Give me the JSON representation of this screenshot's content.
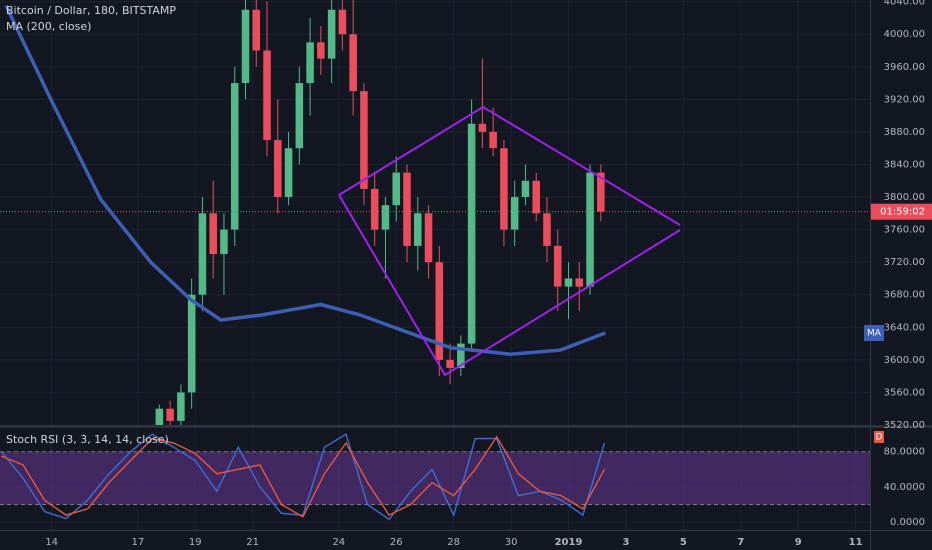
{
  "chart_data": [
    {
      "type": "candlestick",
      "title": "Bitcoin / Dollar, 180, BITSTAMP",
      "x": [
        17.75,
        18.125,
        18.5,
        18.875,
        19.25,
        19.625,
        20,
        20.375,
        20.75,
        21.125,
        21.5,
        21.875,
        22.25,
        22.625,
        23,
        23.375,
        23.75,
        24.125,
        24.5,
        24.875,
        25.25,
        25.625,
        26,
        26.375,
        26.75,
        27.125,
        27.5,
        27.875,
        28.25,
        28.625,
        29,
        29.375,
        29.75,
        30.125,
        30.5,
        30.875,
        31.25,
        31.625,
        32,
        32.375,
        32.75,
        33.125
      ],
      "open": [
        3520,
        3540,
        3525,
        3560,
        3680,
        3780,
        3730,
        3760,
        3940,
        4030,
        3980,
        3870,
        3800,
        3860,
        3940,
        3990,
        3970,
        4030,
        4000,
        3930,
        3810,
        3760,
        3790,
        3830,
        3740,
        3780,
        3720,
        3600,
        3590,
        3620,
        3890,
        3880,
        3860,
        3760,
        3800,
        3820,
        3780,
        3740,
        3690,
        3700,
        3690,
        3830
      ],
      "high": [
        3545,
        3550,
        3570,
        3700,
        3800,
        3820,
        3780,
        3960,
        4060,
        4060,
        4040,
        3920,
        3880,
        3960,
        4020,
        4010,
        4050,
        4060,
        4050,
        3940,
        3830,
        3800,
        3850,
        3840,
        3800,
        3790,
        3740,
        3620,
        3630,
        3920,
        3970,
        3910,
        3870,
        3820,
        3840,
        3830,
        3800,
        3760,
        3720,
        3720,
        3840,
        3840
      ],
      "low": [
        3505,
        3510,
        3515,
        3540,
        3660,
        3700,
        3680,
        3740,
        3920,
        3960,
        3850,
        3780,
        3790,
        3840,
        3900,
        3950,
        3940,
        3980,
        3900,
        3790,
        3740,
        3700,
        3770,
        3720,
        3710,
        3700,
        3580,
        3570,
        3580,
        3610,
        3860,
        3850,
        3740,
        3740,
        3790,
        3770,
        3720,
        3660,
        3650,
        3660,
        3680,
        3770
      ],
      "close": [
        3540,
        3525,
        3560,
        3680,
        3780,
        3730,
        3760,
        3940,
        4030,
        3980,
        3870,
        3800,
        3860,
        3940,
        3990,
        3970,
        4030,
        4000,
        3930,
        3810,
        3760,
        3790,
        3830,
        3740,
        3780,
        3720,
        3600,
        3590,
        3620,
        3890,
        3880,
        3860,
        3760,
        3800,
        3820,
        3780,
        3740,
        3690,
        3700,
        3690,
        3830,
        3782
      ],
      "up_color": "#53b987",
      "down_color": "#eb4d5c",
      "overlays": [
        {
          "name": "MA (200, close)",
          "badge": "MA",
          "color": "#3f5fb6",
          "x": [
            12.41,
            13.97,
            15.71,
            17.45,
            18.84,
            19.89,
            21.28,
            23.37,
            24.76,
            26.15,
            27.89,
            29.97,
            31.71,
            33.28
          ],
          "values": [
            4035,
            3920,
            3797,
            3720,
            3674,
            3649,
            3655,
            3668,
            3655,
            3637,
            3615,
            3607,
            3612,
            3633
          ]
        }
      ],
      "countdown": "01:59:02",
      "xlim": [
        12.2,
        42.5
      ],
      "ylim": [
        3520,
        4042
      ],
      "xticks": [
        14,
        17,
        19,
        21,
        24,
        26,
        28,
        30,
        {
          "value": 32,
          "label": "2019"
        },
        {
          "value": 34,
          "label": "3"
        },
        {
          "value": 36,
          "label": "5"
        },
        {
          "value": 38,
          "label": "7"
        },
        {
          "value": 40,
          "label": "9"
        },
        {
          "value": 42,
          "label": "11"
        }
      ],
      "yticks": [
        {
          "value": 3520,
          "label": "3520.00"
        },
        {
          "value": 3560,
          "label": "3560.00"
        },
        {
          "value": 3600,
          "label": "3600.00"
        },
        {
          "value": 3640,
          "label": "3640.00"
        },
        {
          "value": 3680,
          "label": "3680.00"
        },
        {
          "value": 3720,
          "label": "3720.00"
        },
        {
          "value": 3760,
          "label": "3760.00"
        },
        {
          "value": 3800,
          "label": "3800.00"
        },
        {
          "value": 3840,
          "label": "3840.00"
        },
        {
          "value": 3880,
          "label": "3880.00"
        },
        {
          "value": 3920,
          "label": "3920.00"
        },
        {
          "value": 3960,
          "label": "3960.00"
        },
        {
          "value": 4000,
          "label": "4000.00"
        },
        {
          "value": 4040,
          "label": "4040.00"
        }
      ],
      "grid": true
    },
    {
      "type": "line",
      "title": "Stoch RSI (3, 3, 14, 14, close)",
      "badge": "D",
      "x": [
        12.25,
        13,
        13.75,
        14.5,
        15.25,
        16,
        16.75,
        17.5,
        18.25,
        19,
        19.75,
        20.5,
        21.25,
        22,
        22.75,
        23.5,
        24.25,
        25,
        25.75,
        26.5,
        27.25,
        28,
        28.75,
        29.5,
        30.25,
        31,
        31.75,
        32.5,
        33.25
      ],
      "series": [
        {
          "color": "#3d6fd6",
          "values": [
            80,
            50,
            12,
            4,
            25,
            55,
            80,
            100,
            85,
            70,
            35,
            85,
            40,
            10,
            8,
            85,
            100,
            20,
            3,
            35,
            60,
            8,
            95,
            95,
            30,
            35,
            25,
            8,
            90
          ]
        },
        {
          "color": "#e9573f",
          "values": [
            75,
            65,
            25,
            8,
            15,
            45,
            70,
            95,
            90,
            78,
            55,
            60,
            65,
            20,
            6,
            55,
            90,
            45,
            8,
            20,
            45,
            30,
            60,
            97,
            55,
            35,
            30,
            15,
            60
          ]
        }
      ],
      "band": [
        20,
        80
      ],
      "band_color": "#7b3fb0",
      "xlim": [
        12.2,
        42.5
      ],
      "ylim": [
        -9,
        107
      ],
      "yticks": [
        {
          "value": 0,
          "label": "0.0000"
        },
        {
          "value": 40,
          "label": "40.0000"
        },
        {
          "value": 80,
          "label": "80.0000"
        }
      ]
    }
  ]
}
